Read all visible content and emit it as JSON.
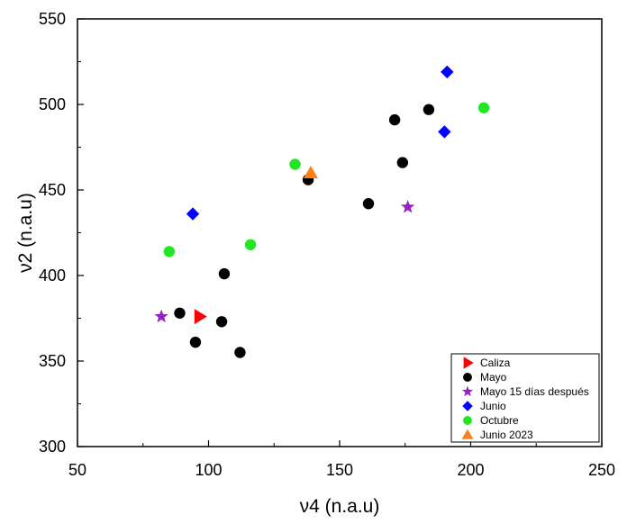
{
  "chart_data": {
    "type": "scatter",
    "title": "",
    "xlabel": "ν4 (n.a.u)",
    "ylabel": "ν2 (n.a.u)",
    "xlim": [
      50,
      250
    ],
    "ylim": [
      300,
      550
    ],
    "x_ticks": [
      50,
      100,
      150,
      200,
      250
    ],
    "y_ticks": [
      300,
      350,
      400,
      450,
      500,
      550
    ],
    "grid": false,
    "legend_position": "bottom-right",
    "series": [
      {
        "name": "Caliza",
        "marker": "triangle-right",
        "color": "#ff0000",
        "points": [
          [
            96.5,
            376
          ]
        ]
      },
      {
        "name": "Mayo",
        "marker": "circle",
        "color": "#000000",
        "points": [
          [
            89,
            378
          ],
          [
            95,
            361
          ],
          [
            105,
            373
          ],
          [
            106,
            401
          ],
          [
            112,
            355
          ],
          [
            138,
            456
          ],
          [
            161,
            442
          ],
          [
            171,
            491
          ],
          [
            174,
            466
          ],
          [
            184,
            497
          ]
        ]
      },
      {
        "name": "Mayo 15 días después",
        "marker": "star",
        "color": "#9a1ec8",
        "points": [
          [
            82,
            376
          ],
          [
            176,
            440
          ]
        ]
      },
      {
        "name": "Junio",
        "marker": "diamond",
        "color": "#0000ff",
        "points": [
          [
            94,
            436
          ],
          [
            190,
            484
          ],
          [
            191,
            519
          ]
        ]
      },
      {
        "name": "Octubre",
        "marker": "circle",
        "color": "#22e622",
        "points": [
          [
            85,
            414
          ],
          [
            116,
            418
          ],
          [
            133,
            465
          ],
          [
            205,
            498
          ]
        ]
      },
      {
        "name": "Junio 2023",
        "marker": "triangle-up",
        "color": "#ff7f1a",
        "points": [
          [
            139,
            460
          ]
        ]
      }
    ]
  }
}
